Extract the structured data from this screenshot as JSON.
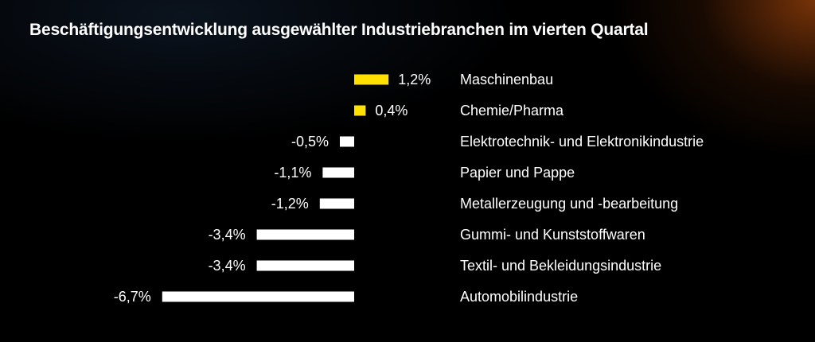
{
  "chart_data": {
    "type": "bar",
    "orientation": "horizontal",
    "title": "Beschäftigungsentwicklung ausgewählter Industriebranchen im vierten Quartal",
    "categories": [
      "Maschinenbau",
      "Chemie/Pharma",
      "Elektrotechnik- und Elektronikindustrie",
      "Papier und Pappe",
      "Metallerzeugung und -bearbeitung",
      "Gummi- und Kunststoffwaren",
      "Textil- und Bekleidungsindustrie",
      "Automobilindustrie"
    ],
    "values": [
      1.2,
      0.4,
      -0.5,
      -1.1,
      -1.2,
      -3.4,
      -3.4,
      -6.7
    ],
    "labels": [
      "1,2%",
      "0,4%",
      "-0,5%",
      "-1,1%",
      "-1,2%",
      "-3,4%",
      "-3,4%",
      "-6,7%"
    ],
    "unit": "%",
    "colors": {
      "positive": "#FFE000",
      "negative": "#FFFFFF"
    },
    "grid": false
  }
}
